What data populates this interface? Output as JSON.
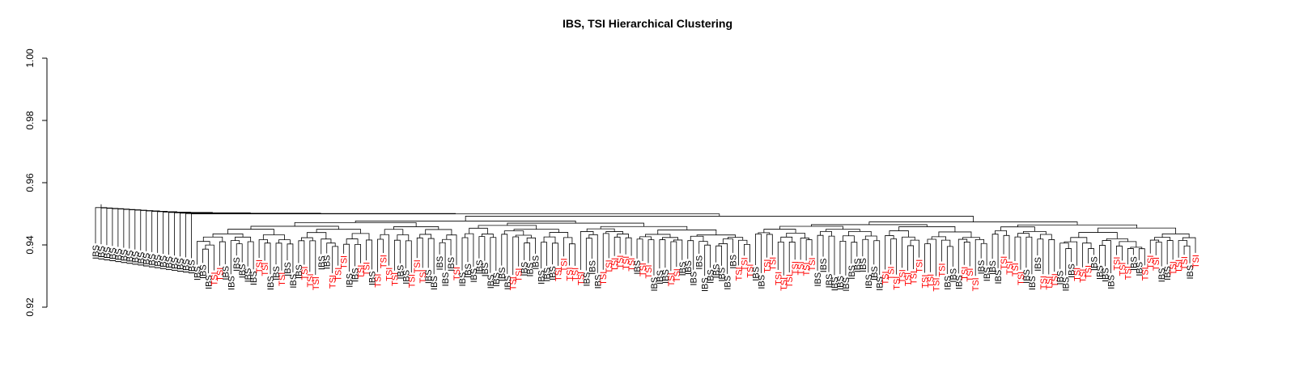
{
  "chart_data": {
    "type": "dendrogram",
    "title": "IBS, TSI Hierarchical Clustering",
    "xlabel": "",
    "ylabel": "",
    "ylim": [
      0.92,
      1.0
    ],
    "yticks": [
      "0.92",
      "0.94",
      "0.96",
      "0.98",
      "1.00"
    ],
    "grid": false,
    "legend": "none",
    "colors": {
      "IBS": "#000000",
      "TSI": "#ff0000"
    },
    "root_height": 0.952,
    "leaf_count": 196,
    "leaves": [
      "IBS",
      "IBS",
      "IBS",
      "IBS",
      "IBS",
      "IBS",
      "IBS",
      "IBS",
      "IBS",
      "IBS",
      "IBS",
      "IBS",
      "IBS",
      "IBS",
      "IBS",
      "IBS",
      "IBS",
      "IBS",
      "IBS",
      "IBS",
      "IBS",
      "TSI",
      "TSI",
      "IBS",
      "IBS",
      "IBS",
      "IBS",
      "IBS",
      "IBS",
      "TSI",
      "TSI",
      "IBS",
      "IBS",
      "TSI",
      "IBS",
      "IBS",
      "IBS",
      "TSI",
      "TSI",
      "TSI",
      "IBS",
      "IBS",
      "TSI",
      "TSI",
      "TSI",
      "IBS",
      "IBS",
      "TSI",
      "TSI",
      "IBS",
      "TSI",
      "TSI",
      "TSI",
      "TSI",
      "IBS",
      "IBS",
      "TSI",
      "TSI",
      "TSI",
      "IBS",
      "IBS",
      "IBS",
      "IBS",
      "IBS",
      "TSI",
      "IBS",
      "IBS",
      "IBS",
      "IBS",
      "IBS",
      "IBS",
      "IBS",
      "IBS",
      "IBS",
      "TSI",
      "TSI",
      "IBS",
      "IBS",
      "IBS",
      "IBS",
      "IBS",
      "IBS",
      "TSI",
      "TSI",
      "TSI",
      "TSI",
      "TSI",
      "IBS",
      "IBS",
      "IBS",
      "TSI",
      "TSI",
      "TSI",
      "TSI",
      "TSI",
      "TSI",
      "IBS",
      "TSI",
      "TSI",
      "IBS",
      "IBS",
      "IBS",
      "TSI",
      "TSI",
      "IBS",
      "IBS",
      "IBS",
      "IBS",
      "IBS",
      "IBS",
      "IBS",
      "IBS",
      "IBS",
      "IBS",
      "TSI",
      "TSI",
      "TSI",
      "IBS",
      "IBS",
      "TSI",
      "TSI",
      "TSI",
      "TSI",
      "TSI",
      "TSI",
      "TSI",
      "TSI",
      "TSI",
      "IBS",
      "IBS",
      "IBS",
      "IBS",
      "IBS",
      "IBS",
      "IBS",
      "IBS",
      "IBS",
      "IBS",
      "IBS",
      "IBS",
      "TSI",
      "TSI",
      "TSI",
      "TSI",
      "TSI",
      "TSI",
      "TSI",
      "TSI",
      "TSI",
      "TSI",
      "TSI",
      "IBS",
      "IBS",
      "IBS",
      "TSI",
      "TSI",
      "TSI",
      "IBS",
      "IBS",
      "IBS",
      "IBS",
      "TSI",
      "TSI",
      "TSI",
      "TSI",
      "IBS",
      "IBS",
      "IBS",
      "TSI",
      "TSI",
      "TSI",
      "IBS",
      "IBS",
      "IBS",
      "TSI",
      "TSI",
      "TSI",
      "IBS",
      "IBS",
      "IBS",
      "IBS",
      "TSI",
      "TSI",
      "TSI",
      "IBS",
      "IBS",
      "TSI",
      "TSI",
      "TSI",
      "IBS",
      "IBS",
      "TSI",
      "TSI",
      "TSI",
      "IBS",
      "TSI"
    ]
  }
}
